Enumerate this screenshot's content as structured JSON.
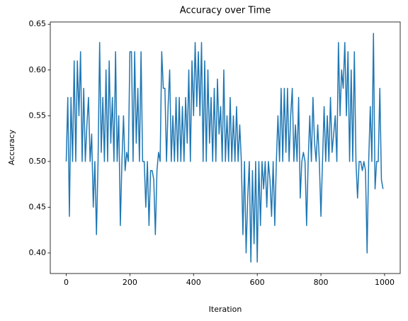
{
  "chart_data": {
    "type": "line",
    "title": "Accuracy over Time",
    "xlabel": "Iteration",
    "ylabel": "Accuracy",
    "x": [
      0,
      5,
      10,
      15,
      20,
      25,
      30,
      35,
      40,
      45,
      50,
      55,
      60,
      65,
      70,
      75,
      80,
      85,
      90,
      95,
      100,
      105,
      110,
      115,
      120,
      125,
      130,
      135,
      140,
      145,
      150,
      155,
      160,
      165,
      170,
      175,
      180,
      185,
      190,
      195,
      200,
      205,
      210,
      215,
      220,
      225,
      230,
      235,
      240,
      245,
      250,
      255,
      260,
      265,
      270,
      275,
      280,
      285,
      290,
      295,
      300,
      305,
      310,
      315,
      320,
      325,
      330,
      335,
      340,
      345,
      350,
      355,
      360,
      365,
      370,
      375,
      380,
      385,
      390,
      395,
      400,
      405,
      410,
      415,
      420,
      425,
      430,
      435,
      440,
      445,
      450,
      455,
      460,
      465,
      470,
      475,
      480,
      485,
      490,
      495,
      500,
      505,
      510,
      515,
      520,
      525,
      530,
      535,
      540,
      545,
      550,
      555,
      560,
      565,
      570,
      575,
      580,
      585,
      590,
      595,
      600,
      605,
      610,
      615,
      620,
      625,
      630,
      635,
      640,
      645,
      650,
      655,
      660,
      665,
      670,
      675,
      680,
      685,
      690,
      695,
      700,
      705,
      710,
      715,
      720,
      725,
      730,
      735,
      740,
      745,
      750,
      755,
      760,
      765,
      770,
      775,
      780,
      785,
      790,
      795,
      800,
      805,
      810,
      815,
      820,
      825,
      830,
      835,
      840,
      845,
      850,
      855,
      860,
      865,
      870,
      875,
      880,
      885,
      890,
      895,
      900,
      905,
      910,
      915,
      920,
      925,
      930,
      935,
      940,
      945,
      950,
      955,
      960,
      965,
      970,
      975,
      980,
      985,
      990,
      995
    ],
    "series": [
      {
        "name": "Accuracy",
        "color": "#1f77b4",
        "values": [
          0.5,
          0.57,
          0.44,
          0.57,
          0.5,
          0.61,
          0.5,
          0.61,
          0.55,
          0.62,
          0.5,
          0.58,
          0.5,
          0.54,
          0.57,
          0.5,
          0.53,
          0.45,
          0.5,
          0.42,
          0.5,
          0.63,
          0.51,
          0.57,
          0.5,
          0.6,
          0.5,
          0.61,
          0.52,
          0.57,
          0.5,
          0.62,
          0.5,
          0.55,
          0.43,
          0.5,
          0.55,
          0.49,
          0.51,
          0.5,
          0.62,
          0.62,
          0.5,
          0.62,
          0.52,
          0.58,
          0.5,
          0.62,
          0.5,
          0.5,
          0.45,
          0.5,
          0.43,
          0.49,
          0.49,
          0.48,
          0.42,
          0.49,
          0.51,
          0.5,
          0.62,
          0.58,
          0.58,
          0.5,
          0.56,
          0.6,
          0.5,
          0.55,
          0.5,
          0.57,
          0.5,
          0.57,
          0.5,
          0.56,
          0.5,
          0.57,
          0.52,
          0.6,
          0.5,
          0.61,
          0.55,
          0.63,
          0.56,
          0.62,
          0.55,
          0.63,
          0.5,
          0.61,
          0.5,
          0.6,
          0.52,
          0.57,
          0.5,
          0.58,
          0.5,
          0.59,
          0.53,
          0.56,
          0.5,
          0.6,
          0.5,
          0.55,
          0.5,
          0.57,
          0.5,
          0.55,
          0.5,
          0.56,
          0.5,
          0.54,
          0.5,
          0.42,
          0.5,
          0.4,
          0.46,
          0.5,
          0.39,
          0.49,
          0.41,
          0.5,
          0.39,
          0.5,
          0.43,
          0.5,
          0.47,
          0.5,
          0.45,
          0.5,
          0.48,
          0.44,
          0.5,
          0.43,
          0.5,
          0.55,
          0.5,
          0.58,
          0.5,
          0.58,
          0.51,
          0.58,
          0.5,
          0.55,
          0.58,
          0.5,
          0.54,
          0.5,
          0.57,
          0.46,
          0.5,
          0.51,
          0.5,
          0.43,
          0.5,
          0.55,
          0.5,
          0.57,
          0.52,
          0.5,
          0.54,
          0.5,
          0.44,
          0.5,
          0.56,
          0.5,
          0.55,
          0.5,
          0.57,
          0.51,
          0.53,
          0.55,
          0.5,
          0.63,
          0.55,
          0.6,
          0.58,
          0.63,
          0.55,
          0.62,
          0.5,
          0.6,
          0.5,
          0.62,
          0.5,
          0.46,
          0.5,
          0.5,
          0.49,
          0.5,
          0.49,
          0.4,
          0.5,
          0.56,
          0.5,
          0.64,
          0.47,
          0.5,
          0.5,
          0.58,
          0.48,
          0.47
        ]
      }
    ],
    "xlim": [
      -50,
      1049
    ],
    "xticks": [
      0,
      200,
      400,
      600,
      800,
      1000
    ],
    "ylim": [
      0.3775,
      0.6525
    ],
    "yticks": [
      {
        "value": 0.4,
        "label": "0.40"
      },
      0.45,
      {
        "value": 0.5,
        "label": "0.50"
      },
      0.55,
      {
        "value": 0.6,
        "label": "0.60"
      },
      0.65
    ],
    "grid": false
  }
}
